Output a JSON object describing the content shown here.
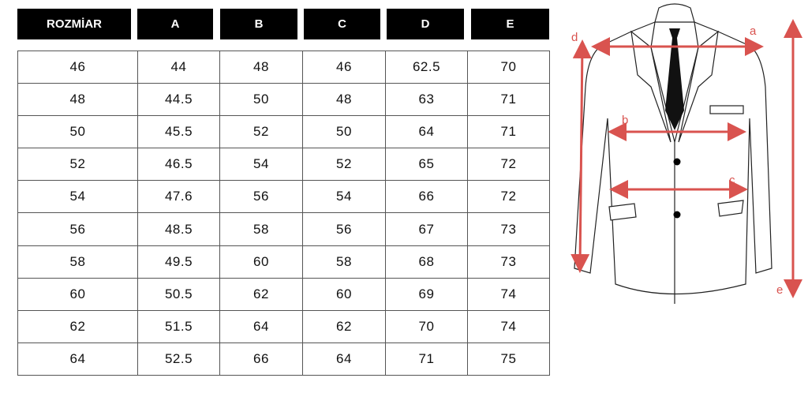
{
  "header": [
    "ROZMİAR",
    "A",
    "B",
    "C",
    "D",
    "E"
  ],
  "rows": [
    [
      "46",
      "44",
      "48",
      "46",
      "62.5",
      "70"
    ],
    [
      "48",
      "44.5",
      "50",
      "48",
      "63",
      "71"
    ],
    [
      "50",
      "45.5",
      "52",
      "50",
      "64",
      "71"
    ],
    [
      "52",
      "46.5",
      "54",
      "52",
      "65",
      "72"
    ],
    [
      "54",
      "47.6",
      "56",
      "54",
      "66",
      "72"
    ],
    [
      "56",
      "48.5",
      "58",
      "56",
      "67",
      "73"
    ],
    [
      "58",
      "49.5",
      "60",
      "58",
      "68",
      "73"
    ],
    [
      "60",
      "50.5",
      "62",
      "60",
      "69",
      "74"
    ],
    [
      "62",
      "51.5",
      "64",
      "62",
      "70",
      "74"
    ],
    [
      "64",
      "52.5",
      "66",
      "64",
      "71",
      "75"
    ]
  ],
  "diagram": {
    "labels": {
      "a": "a",
      "b": "b",
      "c": "c",
      "d": "d",
      "e": "e"
    },
    "arrow_color": "#d9534f"
  }
}
